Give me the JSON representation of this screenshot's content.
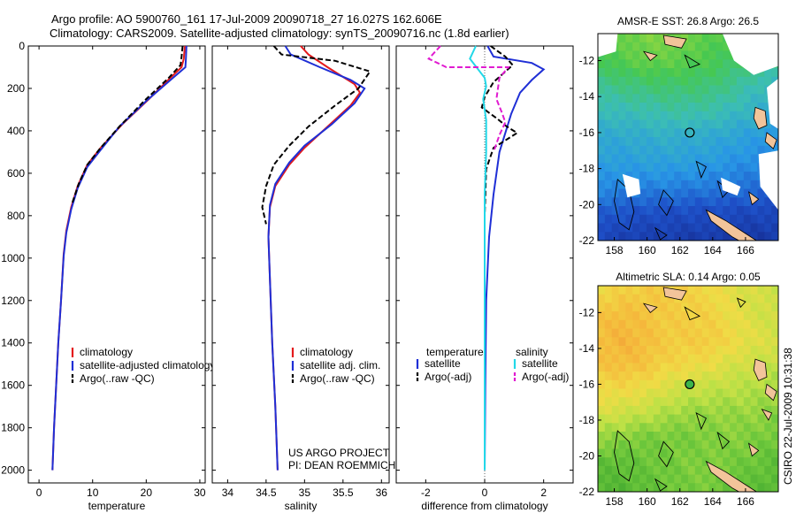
{
  "header": {
    "line1": "Argo profile: AO 5900760_161 17-Jul-2009 20090718_27 16.027S 162.606E",
    "line2": "Climatology: CARS2009. Satellite-adjusted climatology: synTS_20090716.nc (1.8d earlier)"
  },
  "footer": {
    "project": "US ARGO PROJECT",
    "pi": "PI: DEAN ROEMMICH",
    "stamp": "CSIRO 22-Jul-2009 10:31:38"
  },
  "colors": {
    "climatology": "#e41a1c",
    "satellite": "#1f2fd6",
    "argo": "#000000",
    "sal_satellite": "#22d8e8",
    "sal_argo": "#e01bd0"
  },
  "chart_data": [
    {
      "id": "temperature",
      "type": "line",
      "xlabel": "temperature",
      "ylabel": "",
      "xlim": [
        -2,
        31
      ],
      "ylim": [
        2060,
        0
      ],
      "xticks": [
        0,
        10,
        20,
        30
      ],
      "yticks": [
        0,
        200,
        400,
        600,
        800,
        1000,
        1200,
        1400,
        1600,
        1800,
        2000
      ],
      "legend": [
        "climatology",
        "satellite-adjusted climatology",
        "Argo(..raw -QC)"
      ],
      "series": [
        {
          "name": "climatology",
          "style": "solid",
          "color": "#e41a1c",
          "x": [
            27.2,
            27.0,
            26.6,
            24.5,
            20.5,
            15.5,
            11.5,
            9.0,
            7.2,
            6.0,
            5.1,
            4.6,
            4.1,
            3.6,
            3.2,
            2.8,
            2.5
          ],
          "y": [
            0,
            60,
            100,
            150,
            250,
            370,
            480,
            560,
            660,
            760,
            870,
            980,
            1200,
            1400,
            1600,
            1800,
            2000
          ]
        },
        {
          "name": "satellite-adjusted climatology",
          "style": "solid",
          "color": "#1f2fd6",
          "x": [
            27.5,
            27.4,
            27.3,
            25.0,
            20.0,
            15.0,
            11.5,
            9.0,
            7.2,
            6.0,
            5.1,
            4.6,
            4.1,
            3.6,
            3.2,
            2.8,
            2.5
          ],
          "y": [
            0,
            60,
            100,
            150,
            260,
            380,
            490,
            570,
            670,
            770,
            880,
            990,
            1200,
            1400,
            1600,
            1800,
            2000
          ]
        },
        {
          "name": "Argo(..raw -QC)",
          "style": "dashed",
          "color": "#000000",
          "x": [
            26.8,
            26.6,
            26.4,
            24.2,
            19.6,
            15.0,
            11.5,
            9.0,
            7.4,
            6.2
          ],
          "y": [
            0,
            50,
            90,
            150,
            260,
            380,
            480,
            560,
            650,
            740
          ]
        }
      ]
    },
    {
      "id": "salinity",
      "type": "line",
      "xlabel": "salinity",
      "xlim": [
        33.8,
        36.1
      ],
      "ylim": [
        2060,
        0
      ],
      "xticks": [
        34,
        34.5,
        35,
        35.5,
        36
      ],
      "legend": [
        "climatology",
        "satellite adj. clim.",
        "Argo(..raw -QC)"
      ],
      "series": [
        {
          "name": "climatology",
          "style": "solid",
          "color": "#e41a1c",
          "x": [
            34.95,
            35.05,
            35.3,
            35.65,
            35.72,
            35.6,
            35.3,
            35.0,
            34.8,
            34.62,
            34.55,
            34.53,
            34.55,
            34.58,
            34.62,
            34.65
          ],
          "y": [
            0,
            40,
            100,
            180,
            220,
            280,
            380,
            480,
            560,
            660,
            760,
            900,
            1100,
            1400,
            1700,
            2000
          ]
        },
        {
          "name": "satellite adj. clim.",
          "style": "solid",
          "color": "#1f2fd6",
          "x": [
            34.75,
            34.82,
            35.2,
            35.6,
            35.78,
            35.65,
            35.35,
            35.0,
            34.8,
            34.62,
            34.55,
            34.53,
            34.55,
            34.58,
            34.62,
            34.65
          ],
          "y": [
            0,
            40,
            100,
            160,
            200,
            270,
            370,
            470,
            550,
            650,
            750,
            900,
            1100,
            1400,
            1700,
            2000
          ]
        },
        {
          "name": "Argo(..raw -QC)",
          "style": "dashed",
          "color": "#000000",
          "x": [
            34.6,
            34.7,
            35.4,
            35.85,
            35.7,
            35.4,
            35.05,
            34.8,
            34.6,
            34.5,
            34.45,
            34.5
          ],
          "y": [
            0,
            40,
            70,
            120,
            200,
            280,
            380,
            470,
            560,
            660,
            760,
            840
          ]
        }
      ]
    },
    {
      "id": "difference",
      "type": "line",
      "xlabel": "difference from climatology",
      "xlim": [
        -3,
        3
      ],
      "ylim": [
        2060,
        0
      ],
      "xticks": [
        -2,
        0,
        2
      ],
      "legend_headers": [
        "temperature",
        "salinity"
      ],
      "legend": [
        "satellite",
        "Argo(-adj)",
        "satellite",
        "Argo(-adj)"
      ],
      "series": [
        {
          "name": "temperature satellite",
          "style": "solid",
          "color": "#1f2fd6",
          "x": [
            0.1,
            0.3,
            1.6,
            2.0,
            1.6,
            1.2,
            0.9,
            0.5,
            0.3,
            0.15,
            0.05,
            0.02,
            0.0
          ],
          "y": [
            0,
            50,
            80,
            110,
            160,
            220,
            320,
            500,
            700,
            900,
            1200,
            1600,
            2000
          ]
        },
        {
          "name": "temperature Argo(-adj)",
          "style": "dashed",
          "color": "#000000",
          "x": [
            0.2,
            0.7,
            0.95,
            0.3,
            0.0,
            -0.1,
            0.4,
            0.75,
            1.1,
            0.3,
            0.05,
            0.0
          ],
          "y": [
            0,
            50,
            90,
            170,
            240,
            290,
            340,
            380,
            410,
            480,
            580,
            800
          ]
        },
        {
          "name": "salinity satellite",
          "style": "solid",
          "color": "#22d8e8",
          "x": [
            -0.3,
            -0.5,
            0.0,
            0.05,
            -0.05,
            0.05,
            0.05,
            0.0,
            0.0,
            0.0,
            0.0
          ],
          "y": [
            0,
            60,
            150,
            190,
            250,
            350,
            500,
            700,
            1000,
            1500,
            2000
          ]
        },
        {
          "name": "salinity Argo(-adj)",
          "style": "dashed",
          "color": "#e01bd0",
          "x": [
            -1.5,
            -1.9,
            -1.3,
            0.8,
            0.5,
            0.4,
            0.6,
            0.7,
            0.5,
            0.3
          ],
          "y": [
            0,
            60,
            100,
            100,
            150,
            250,
            320,
            360,
            420,
            500
          ]
        }
      ]
    },
    {
      "id": "sst-map",
      "type": "heatmap",
      "title": "AMSR-E SST: 26.8 Argo: 26.5",
      "xlim": [
        157,
        168
      ],
      "ylim": [
        -22,
        -10.5
      ],
      "xticks": [
        158,
        160,
        162,
        164,
        166
      ],
      "yticks": [
        -12,
        -14,
        -16,
        -18,
        -20,
        -22
      ],
      "marker": {
        "lon": 162.6,
        "lat": -16.0,
        "fill": "none"
      },
      "field": [
        [
          0.62,
          0.65,
          0.68,
          0.68,
          0.66,
          0.63,
          0.6,
          0.56,
          0.52
        ],
        [
          0.58,
          0.62,
          0.64,
          0.64,
          0.62,
          0.6,
          0.57,
          0.53,
          0.5
        ],
        [
          0.5,
          0.52,
          0.54,
          0.55,
          0.55,
          0.54,
          0.5,
          0.45,
          0.42
        ],
        [
          0.43,
          0.44,
          0.45,
          0.47,
          0.47,
          0.46,
          0.43,
          0.4,
          0.37
        ],
        [
          0.37,
          0.37,
          0.38,
          0.39,
          0.38,
          0.37,
          0.35,
          0.33,
          0.3
        ],
        [
          0.33,
          0.33,
          0.34,
          0.34,
          0.33,
          0.32,
          0.3,
          0.28,
          0.26
        ],
        [
          0.28,
          0.27,
          0.26,
          0.26,
          0.25,
          0.24,
          0.23,
          0.22,
          0.2
        ],
        [
          0.18,
          0.16,
          0.15,
          0.14,
          0.14,
          0.13,
          0.13,
          0.12,
          0.12
        ],
        [
          0.12,
          0.1,
          0.09,
          0.09,
          0.08,
          0.08,
          0.08,
          0.07,
          0.07
        ]
      ]
    },
    {
      "id": "sla-map",
      "type": "heatmap",
      "title": "Altimetric SLA: 0.14 Argo: 0.05",
      "xlim": [
        157,
        168
      ],
      "ylim": [
        -22,
        -10.5
      ],
      "xticks": [
        158,
        160,
        162,
        164,
        166
      ],
      "yticks": [
        -12,
        -14,
        -16,
        -18,
        -20,
        -22
      ],
      "marker": {
        "lon": 162.6,
        "lat": -16.0,
        "fill": "#3cb44b"
      },
      "field": [
        [
          0.66,
          0.68,
          0.7,
          0.7,
          0.68,
          0.66,
          0.62,
          0.6,
          0.58
        ],
        [
          0.72,
          0.74,
          0.72,
          0.7,
          0.69,
          0.68,
          0.64,
          0.6,
          0.58
        ],
        [
          0.74,
          0.76,
          0.74,
          0.7,
          0.7,
          0.7,
          0.66,
          0.62,
          0.6
        ],
        [
          0.72,
          0.74,
          0.72,
          0.68,
          0.66,
          0.64,
          0.6,
          0.58,
          0.56
        ],
        [
          0.66,
          0.66,
          0.64,
          0.6,
          0.58,
          0.56,
          0.55,
          0.54,
          0.52
        ],
        [
          0.6,
          0.58,
          0.56,
          0.53,
          0.5,
          0.5,
          0.5,
          0.5,
          0.48
        ],
        [
          0.5,
          0.48,
          0.46,
          0.46,
          0.46,
          0.47,
          0.48,
          0.47,
          0.45
        ],
        [
          0.42,
          0.42,
          0.44,
          0.45,
          0.47,
          0.47,
          0.46,
          0.44,
          0.42
        ],
        [
          0.4,
          0.4,
          0.42,
          0.44,
          0.46,
          0.46,
          0.44,
          0.42,
          0.4
        ]
      ]
    }
  ]
}
